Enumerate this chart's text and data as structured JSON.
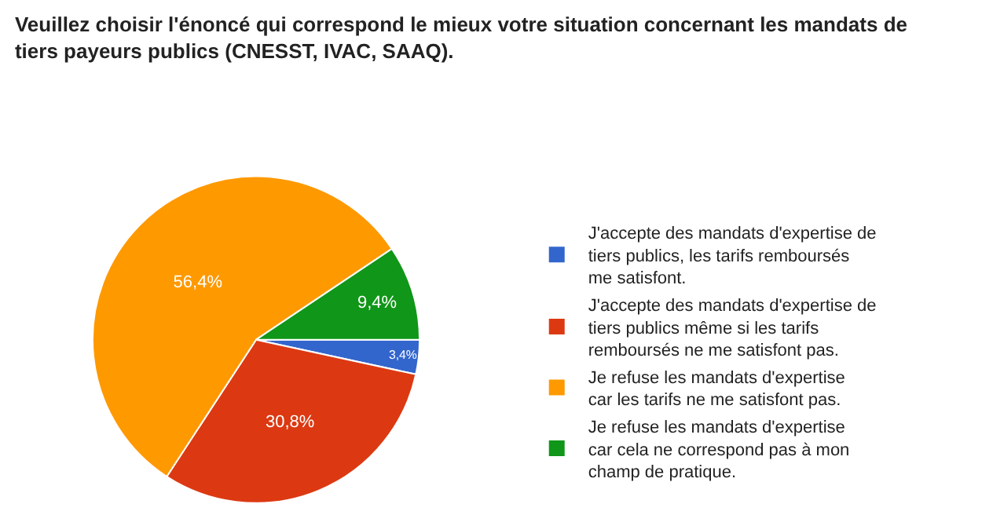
{
  "chart_data": {
    "type": "pie",
    "title": "Veuillez choisir l'énoncé qui correspond le mieux votre situation concernant les mandats de tiers payeurs publics (CNESST, IVAC, SAAQ).",
    "categories": [
      "J'accepte des mandats d'expertise de tiers publics, les tarifs remboursés me satisfont.",
      "J'accepte des mandats d'expertise de tiers publics même si les tarifs remboursés ne me satisfont pas.",
      "Je refuse les mandats d'expertise car les tarifs ne me satisfont pas.",
      "Je refuse les mandats d'expertise car cela ne correspond pas à mon champ de pratique."
    ],
    "values": [
      3.4,
      30.8,
      56.4,
      9.4
    ],
    "colors": [
      "#3366cc",
      "#dc3912",
      "#ff9900",
      "#109618"
    ],
    "value_labels": [
      "3,4%",
      "30,8%",
      "56,4%",
      "9,4%"
    ],
    "legend": "right"
  }
}
